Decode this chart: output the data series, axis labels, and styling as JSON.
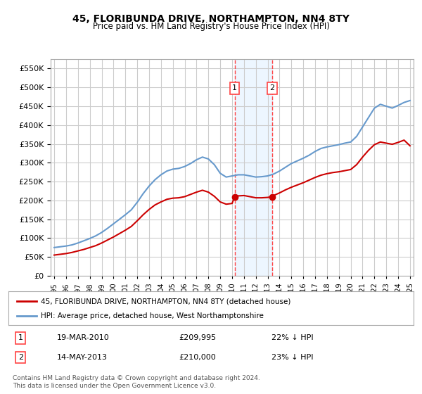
{
  "title": "45, FLORIBUNDA DRIVE, NORTHAMPTON, NN4 8TY",
  "subtitle": "Price paid vs. HM Land Registry's House Price Index (HPI)",
  "red_label": "45, FLORIBUNDA DRIVE, NORTHAMPTON, NN4 8TY (detached house)",
  "blue_label": "HPI: Average price, detached house, West Northamptonshire",
  "footnote": "Contains HM Land Registry data © Crown copyright and database right 2024.\nThis data is licensed under the Open Government Licence v3.0.",
  "sale1_date": "19-MAR-2010",
  "sale1_price": "£209,995",
  "sale1_pct": "22% ↓ HPI",
  "sale2_date": "14-MAY-2013",
  "sale2_price": "£210,000",
  "sale2_pct": "23% ↓ HPI",
  "ylim": [
    0,
    575000
  ],
  "yticks": [
    0,
    50000,
    100000,
    150000,
    200000,
    250000,
    300000,
    350000,
    400000,
    450000,
    500000,
    550000
  ],
  "red_color": "#cc0000",
  "blue_color": "#6699cc",
  "grid_color": "#cccccc",
  "bg_color": "#ffffff",
  "plot_bg": "#ffffff",
  "sale1_x": 2010.21,
  "sale2_x": 2013.37,
  "vline_color": "#ff4444",
  "shade_color": "#ddeeff"
}
